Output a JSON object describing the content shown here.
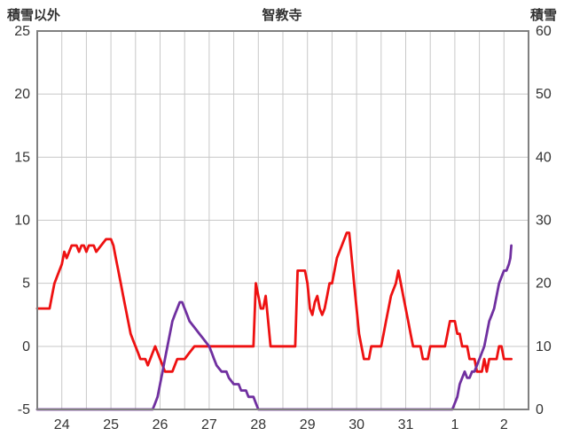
{
  "chart_data": {
    "type": "line",
    "title": "智教寺",
    "left_axis_label": "積雪以外",
    "right_axis_label": "積雪",
    "left_axis": {
      "min": -5,
      "max": 25,
      "ticks": [
        25,
        20,
        15,
        10,
        5,
        0,
        -5
      ]
    },
    "right_axis": {
      "min": 0,
      "max": 60,
      "ticks": [
        60,
        50,
        40,
        30,
        20,
        10,
        0
      ]
    },
    "x_axis": {
      "min": 0,
      "max": 10,
      "grid_step": 0.5,
      "labels": [
        "24",
        "25",
        "26",
        "27",
        "28",
        "29",
        "30",
        "31",
        "1",
        "2"
      ]
    },
    "grid": true,
    "legend": "none",
    "colors": {
      "border": "#808080",
      "grid": "#c8c8c8",
      "text": "#333333"
    },
    "series": [
      {
        "name": "red",
        "axis": "left",
        "color": "#ee1111",
        "width": 2.8,
        "points": [
          [
            0.0,
            3
          ],
          [
            0.25,
            3
          ],
          [
            0.3,
            4
          ],
          [
            0.35,
            5
          ],
          [
            0.45,
            6
          ],
          [
            0.5,
            6.5
          ],
          [
            0.55,
            7.5
          ],
          [
            0.6,
            7
          ],
          [
            0.65,
            7.5
          ],
          [
            0.7,
            8
          ],
          [
            0.8,
            8
          ],
          [
            0.85,
            7.5
          ],
          [
            0.9,
            8
          ],
          [
            0.95,
            8
          ],
          [
            1.0,
            7.5
          ],
          [
            1.05,
            8
          ],
          [
            1.15,
            8
          ],
          [
            1.2,
            7.5
          ],
          [
            1.3,
            8
          ],
          [
            1.4,
            8.5
          ],
          [
            1.5,
            8.5
          ],
          [
            1.55,
            8
          ],
          [
            1.6,
            7
          ],
          [
            1.65,
            6
          ],
          [
            1.7,
            5
          ],
          [
            1.75,
            4
          ],
          [
            1.8,
            3
          ],
          [
            1.85,
            2
          ],
          [
            1.9,
            1
          ],
          [
            1.95,
            0.5
          ],
          [
            2.0,
            0
          ],
          [
            2.05,
            -0.5
          ],
          [
            2.1,
            -1
          ],
          [
            2.2,
            -1
          ],
          [
            2.25,
            -1.5
          ],
          [
            2.3,
            -1
          ],
          [
            2.35,
            -0.5
          ],
          [
            2.4,
            0
          ],
          [
            2.45,
            -0.5
          ],
          [
            2.5,
            -1
          ],
          [
            2.55,
            -1.5
          ],
          [
            2.6,
            -2
          ],
          [
            2.75,
            -2
          ],
          [
            2.8,
            -1.5
          ],
          [
            2.85,
            -1
          ],
          [
            3.0,
            -1
          ],
          [
            3.1,
            -0.5
          ],
          [
            3.2,
            0
          ],
          [
            4.4,
            0
          ],
          [
            4.45,
            5
          ],
          [
            4.5,
            4
          ],
          [
            4.55,
            3
          ],
          [
            4.6,
            3
          ],
          [
            4.65,
            4
          ],
          [
            4.7,
            2
          ],
          [
            4.75,
            0
          ],
          [
            5.25,
            0
          ],
          [
            5.3,
            6
          ],
          [
            5.45,
            6
          ],
          [
            5.5,
            5
          ],
          [
            5.55,
            3
          ],
          [
            5.6,
            2.5
          ],
          [
            5.65,
            3.5
          ],
          [
            5.7,
            4
          ],
          [
            5.75,
            3
          ],
          [
            5.8,
            2.5
          ],
          [
            5.85,
            3
          ],
          [
            5.9,
            4
          ],
          [
            5.95,
            5
          ],
          [
            6.0,
            5
          ],
          [
            6.05,
            6
          ],
          [
            6.1,
            7
          ],
          [
            6.2,
            8
          ],
          [
            6.3,
            9
          ],
          [
            6.35,
            9
          ],
          [
            6.4,
            7
          ],
          [
            6.45,
            5
          ],
          [
            6.5,
            3
          ],
          [
            6.55,
            1
          ],
          [
            6.6,
            0
          ],
          [
            6.65,
            -1
          ],
          [
            6.75,
            -1
          ],
          [
            6.8,
            0
          ],
          [
            7.0,
            0
          ],
          [
            7.05,
            1
          ],
          [
            7.1,
            2
          ],
          [
            7.2,
            4
          ],
          [
            7.3,
            5
          ],
          [
            7.35,
            6
          ],
          [
            7.4,
            5
          ],
          [
            7.45,
            4
          ],
          [
            7.5,
            3
          ],
          [
            7.55,
            2
          ],
          [
            7.6,
            1
          ],
          [
            7.65,
            0
          ],
          [
            7.8,
            0
          ],
          [
            7.85,
            -1
          ],
          [
            7.95,
            -1
          ],
          [
            8.0,
            0
          ],
          [
            8.3,
            0
          ],
          [
            8.35,
            1
          ],
          [
            8.4,
            2
          ],
          [
            8.5,
            2
          ],
          [
            8.55,
            1
          ],
          [
            8.6,
            1
          ],
          [
            8.65,
            0
          ],
          [
            8.75,
            0
          ],
          [
            8.8,
            -1
          ],
          [
            8.9,
            -1
          ],
          [
            8.95,
            -2
          ],
          [
            9.05,
            -2
          ],
          [
            9.1,
            -1
          ],
          [
            9.15,
            -2
          ],
          [
            9.2,
            -1
          ],
          [
            9.35,
            -1
          ],
          [
            9.4,
            0
          ],
          [
            9.45,
            0
          ],
          [
            9.5,
            -1
          ],
          [
            9.65,
            -1
          ]
        ]
      },
      {
        "name": "purple",
        "axis": "right",
        "color": "#7030a0",
        "width": 2.8,
        "points": [
          [
            0.0,
            0
          ],
          [
            2.35,
            0
          ],
          [
            2.4,
            1
          ],
          [
            2.45,
            2
          ],
          [
            2.5,
            4
          ],
          [
            2.55,
            6
          ],
          [
            2.6,
            8
          ],
          [
            2.65,
            10
          ],
          [
            2.7,
            12
          ],
          [
            2.75,
            14
          ],
          [
            2.8,
            15
          ],
          [
            2.85,
            16
          ],
          [
            2.9,
            17
          ],
          [
            2.95,
            17
          ],
          [
            3.0,
            16
          ],
          [
            3.05,
            15
          ],
          [
            3.1,
            14
          ],
          [
            3.2,
            13
          ],
          [
            3.3,
            12
          ],
          [
            3.4,
            11
          ],
          [
            3.5,
            10
          ],
          [
            3.55,
            9
          ],
          [
            3.6,
            8
          ],
          [
            3.65,
            7
          ],
          [
            3.75,
            6
          ],
          [
            3.85,
            6
          ],
          [
            3.9,
            5
          ],
          [
            4.0,
            4
          ],
          [
            4.1,
            4
          ],
          [
            4.15,
            3
          ],
          [
            4.25,
            3
          ],
          [
            4.3,
            2
          ],
          [
            4.4,
            2
          ],
          [
            4.45,
            1
          ],
          [
            4.5,
            0
          ],
          [
            8.45,
            0
          ],
          [
            8.5,
            1
          ],
          [
            8.55,
            2
          ],
          [
            8.6,
            4
          ],
          [
            8.65,
            5
          ],
          [
            8.7,
            6
          ],
          [
            8.75,
            5
          ],
          [
            8.8,
            5
          ],
          [
            8.85,
            6
          ],
          [
            8.9,
            6
          ],
          [
            8.95,
            7
          ],
          [
            9.0,
            8
          ],
          [
            9.05,
            9
          ],
          [
            9.1,
            10
          ],
          [
            9.15,
            12
          ],
          [
            9.2,
            14
          ],
          [
            9.25,
            15
          ],
          [
            9.3,
            16
          ],
          [
            9.35,
            18
          ],
          [
            9.4,
            20
          ],
          [
            9.45,
            21
          ],
          [
            9.5,
            22
          ],
          [
            9.55,
            22
          ],
          [
            9.6,
            23
          ],
          [
            9.63,
            24
          ],
          [
            9.65,
            26
          ]
        ]
      }
    ]
  }
}
